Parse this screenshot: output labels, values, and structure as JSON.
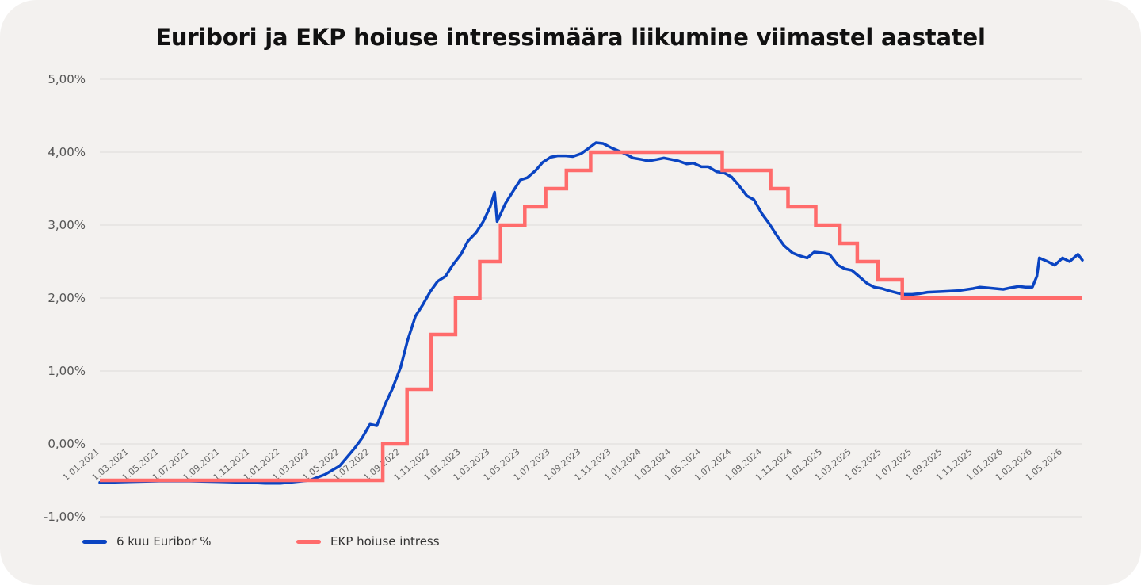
{
  "chart_data": {
    "type": "line",
    "title": "Euribori ja EKP hoiuse intressimäära liikumine viimastel aastatel",
    "ylim": [
      -1,
      5
    ],
    "y_ticks": [
      "5,00%",
      "4,00%",
      "3,00%",
      "2,00%",
      "1,00%",
      "0,00%",
      "-1,00%"
    ],
    "x_ticks": [
      "1.01.2021",
      "1.03.2021",
      "1.05.2021",
      "1.07.2021",
      "1.09.2021",
      "1.11.2021",
      "1.01.2022",
      "1.03.2022",
      "1.05.2022",
      "1.07.2022",
      "1.09.2022",
      "1.11.2022",
      "1.01.2023",
      "1.03.2023",
      "1.05.2023",
      "1.07.2023",
      "1.09.2023",
      "1.11.2023",
      "1.01.2024",
      "1.03.2024",
      "1.05.2024",
      "1.07.2024",
      "1.09.2024",
      "1.11.2024",
      "1.01.2025",
      "1.03.2025",
      "1.05.2025",
      "1.07.2025",
      "1.09.2025",
      "1.11.2025",
      "1.01.2026",
      "1.03.2026",
      "1.05.2026"
    ],
    "x_range": [
      "2021-01-01",
      "2026-06-10"
    ],
    "grid": true,
    "legend_position": "bottom-left",
    "series": [
      {
        "name": "6 kuu Euribor %",
        "color": "#0a44c2",
        "points": [
          [
            "2021-01-01",
            -0.53
          ],
          [
            "2021-03-01",
            -0.52
          ],
          [
            "2021-05-01",
            -0.51
          ],
          [
            "2021-07-01",
            -0.51
          ],
          [
            "2021-09-01",
            -0.52
          ],
          [
            "2021-11-01",
            -0.53
          ],
          [
            "2021-12-01",
            -0.54
          ],
          [
            "2022-01-01",
            -0.54
          ],
          [
            "2022-02-01",
            -0.52
          ],
          [
            "2022-03-01",
            -0.5
          ],
          [
            "2022-04-01",
            -0.42
          ],
          [
            "2022-05-01",
            -0.3
          ],
          [
            "2022-06-01",
            -0.05
          ],
          [
            "2022-06-15",
            0.08
          ],
          [
            "2022-07-01",
            0.27
          ],
          [
            "2022-07-15",
            0.25
          ],
          [
            "2022-08-01",
            0.55
          ],
          [
            "2022-08-15",
            0.75
          ],
          [
            "2022-09-01",
            1.05
          ],
          [
            "2022-09-15",
            1.42
          ],
          [
            "2022-10-01",
            1.75
          ],
          [
            "2022-10-15",
            1.9
          ],
          [
            "2022-11-01",
            2.1
          ],
          [
            "2022-11-15",
            2.23
          ],
          [
            "2022-12-01",
            2.3
          ],
          [
            "2022-12-15",
            2.45
          ],
          [
            "2023-01-01",
            2.6
          ],
          [
            "2023-01-15",
            2.78
          ],
          [
            "2023-02-01",
            2.9
          ],
          [
            "2023-02-15",
            3.05
          ],
          [
            "2023-03-01",
            3.25
          ],
          [
            "2023-03-10",
            3.45
          ],
          [
            "2023-03-15",
            3.05
          ],
          [
            "2023-04-01",
            3.3
          ],
          [
            "2023-04-15",
            3.45
          ],
          [
            "2023-05-01",
            3.62
          ],
          [
            "2023-05-15",
            3.65
          ],
          [
            "2023-06-01",
            3.75
          ],
          [
            "2023-06-15",
            3.86
          ],
          [
            "2023-07-01",
            3.93
          ],
          [
            "2023-07-15",
            3.95
          ],
          [
            "2023-08-01",
            3.95
          ],
          [
            "2023-08-15",
            3.94
          ],
          [
            "2023-09-01",
            3.98
          ],
          [
            "2023-09-15",
            4.05
          ],
          [
            "2023-10-01",
            4.13
          ],
          [
            "2023-10-15",
            4.12
          ],
          [
            "2023-11-01",
            4.06
          ],
          [
            "2023-11-15",
            4.02
          ],
          [
            "2023-12-01",
            3.97
          ],
          [
            "2023-12-15",
            3.92
          ],
          [
            "2024-01-01",
            3.9
          ],
          [
            "2024-01-15",
            3.88
          ],
          [
            "2024-02-01",
            3.9
          ],
          [
            "2024-02-15",
            3.92
          ],
          [
            "2024-03-01",
            3.9
          ],
          [
            "2024-03-15",
            3.88
          ],
          [
            "2024-04-01",
            3.84
          ],
          [
            "2024-04-15",
            3.85
          ],
          [
            "2024-05-01",
            3.8
          ],
          [
            "2024-05-15",
            3.8
          ],
          [
            "2024-06-01",
            3.73
          ],
          [
            "2024-06-15",
            3.72
          ],
          [
            "2024-07-01",
            3.66
          ],
          [
            "2024-07-15",
            3.55
          ],
          [
            "2024-08-01",
            3.4
          ],
          [
            "2024-08-15",
            3.35
          ],
          [
            "2024-09-01",
            3.15
          ],
          [
            "2024-09-15",
            3.02
          ],
          [
            "2024-10-01",
            2.85
          ],
          [
            "2024-10-15",
            2.72
          ],
          [
            "2024-11-01",
            2.62
          ],
          [
            "2024-11-15",
            2.58
          ],
          [
            "2024-12-01",
            2.55
          ],
          [
            "2024-12-15",
            2.63
          ],
          [
            "2025-01-01",
            2.62
          ],
          [
            "2025-01-15",
            2.6
          ],
          [
            "2025-02-01",
            2.45
          ],
          [
            "2025-02-15",
            2.4
          ],
          [
            "2025-03-01",
            2.38
          ],
          [
            "2025-03-15",
            2.3
          ],
          [
            "2025-04-01",
            2.2
          ],
          [
            "2025-04-15",
            2.15
          ],
          [
            "2025-05-01",
            2.13
          ],
          [
            "2025-05-15",
            2.1
          ],
          [
            "2025-06-01",
            2.07
          ],
          [
            "2025-06-15",
            2.05
          ],
          [
            "2025-07-01",
            2.05
          ],
          [
            "2025-07-15",
            2.06
          ],
          [
            "2025-08-01",
            2.08
          ],
          [
            "2025-09-01",
            2.09
          ],
          [
            "2025-10-01",
            2.1
          ],
          [
            "2025-11-01",
            2.13
          ],
          [
            "2025-11-15",
            2.15
          ],
          [
            "2025-12-01",
            2.14
          ],
          [
            "2026-01-01",
            2.12
          ],
          [
            "2026-01-15",
            2.14
          ],
          [
            "2026-02-01",
            2.16
          ],
          [
            "2026-02-15",
            2.15
          ],
          [
            "2026-03-01",
            2.15
          ],
          [
            "2026-03-10",
            2.3
          ],
          [
            "2026-03-15",
            2.55
          ],
          [
            "2026-04-01",
            2.5
          ],
          [
            "2026-04-15",
            2.45
          ],
          [
            "2026-05-01",
            2.55
          ],
          [
            "2026-05-15",
            2.5
          ],
          [
            "2026-06-01",
            2.6
          ],
          [
            "2026-06-10",
            2.52
          ]
        ]
      },
      {
        "name": "EKP hoiuse intress",
        "color": "#ff6b6b",
        "steps": [
          [
            "2021-01-01",
            -0.5
          ],
          [
            "2022-07-27",
            0.0
          ],
          [
            "2022-09-14",
            0.75
          ],
          [
            "2022-11-02",
            1.5
          ],
          [
            "2022-12-21",
            2.0
          ],
          [
            "2023-02-08",
            2.5
          ],
          [
            "2023-03-22",
            3.0
          ],
          [
            "2023-05-10",
            3.25
          ],
          [
            "2023-06-21",
            3.5
          ],
          [
            "2023-08-02",
            3.75
          ],
          [
            "2023-09-20",
            4.0
          ],
          [
            "2024-06-12",
            3.75
          ],
          [
            "2024-09-18",
            3.5
          ],
          [
            "2024-10-23",
            3.25
          ],
          [
            "2024-12-18",
            3.0
          ],
          [
            "2025-02-05",
            2.75
          ],
          [
            "2025-03-12",
            2.5
          ],
          [
            "2025-04-23",
            2.25
          ],
          [
            "2025-06-11",
            2.0
          ],
          [
            "2026-06-10",
            2.0
          ]
        ]
      }
    ]
  }
}
